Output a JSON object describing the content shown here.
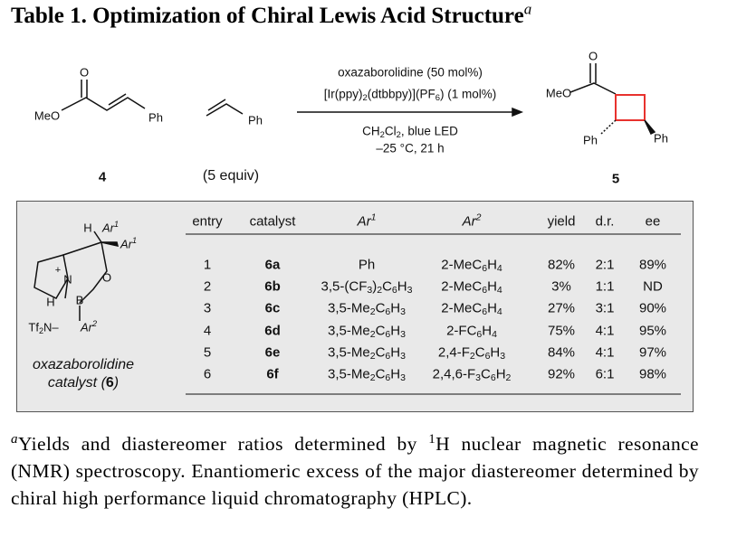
{
  "title": "Table 1. Optimization of Chiral Lewis Acid Structure",
  "title_note": "a",
  "scheme": {
    "reactant": {
      "ester_label": "MeO",
      "carbonyl_label": "O",
      "phenyl_label": "Ph",
      "number": "4"
    },
    "alkene": {
      "phenyl_label": "Ph",
      "amount": "(5 equiv)"
    },
    "conditions_above": [
      "oxazaborolidine (50 mol%)",
      "[Ir(ppy)2(dtbbpy)](PF6) (1 mol%)"
    ],
    "conditions_below": [
      "CH2Cl2, blue LED",
      "–25 °C, 21 h"
    ],
    "product": {
      "ester_label": "MeO",
      "carbonyl_label": "O",
      "phenyl_labels": [
        "Ph",
        "Ph"
      ],
      "number": "5"
    }
  },
  "catalyst": {
    "labels": [
      {
        "text": "H"
      },
      {
        "text": "Ar",
        "sup": "1"
      },
      {
        "text": "Ar",
        "sup": "1"
      },
      {
        "text": "N"
      },
      {
        "text": "+"
      },
      {
        "text": "O"
      },
      {
        "text": "B"
      },
      {
        "text": "H"
      },
      {
        "text": "Ar",
        "sup": "2"
      },
      {
        "text": "Tf2N–"
      }
    ],
    "caption": "oxazaborolidine",
    "caption_prefix": "catalyst (",
    "caption_number": "6",
    "caption_suffix": ")"
  },
  "table": {
    "header": [
      {
        "text": "entry"
      },
      {
        "text": "catalyst"
      },
      {
        "text": "Ar",
        "sup": "1"
      },
      {
        "text": "Ar",
        "sup": "2"
      },
      {
        "text": "yield"
      },
      {
        "text": "d.r."
      },
      {
        "text": "ee"
      }
    ],
    "rows": [
      [
        "1",
        "6a",
        "Ph",
        "2-MeC6H4",
        "82%",
        "2:1",
        "89%"
      ],
      [
        "2",
        "6b",
        "3,5-(CF3)2C6H3",
        "2-MeC6H4",
        "3%",
        "1:1",
        "ND"
      ],
      [
        "3",
        "6c",
        "3,5-Me2C6H3",
        "2-MeC6H4",
        "27%",
        "3:1",
        "90%"
      ],
      [
        "4",
        "6d",
        "3,5-Me2C6H3",
        "2-FC6H4",
        "75%",
        "4:1",
        "95%"
      ],
      [
        "5",
        "6e",
        "3,5-Me2C6H3",
        "2,4-F2C6H3",
        "84%",
        "4:1",
        "97%"
      ],
      [
        "6",
        "6f",
        "3,5-Me2C6H3",
        "2,4,6-F3C6H2",
        "92%",
        "6:1",
        "98%"
      ]
    ]
  },
  "footnote": {
    "mark": "a",
    "text_before": "Yields and diastereomer ratios determined by ",
    "sup": "1",
    "text_after": "H nuclear magnetic resonance (NMR) spectroscopy. Enantiomeric excess of the major diastereomer determined by chiral high performance liquid chromatography (HPLC)."
  }
}
